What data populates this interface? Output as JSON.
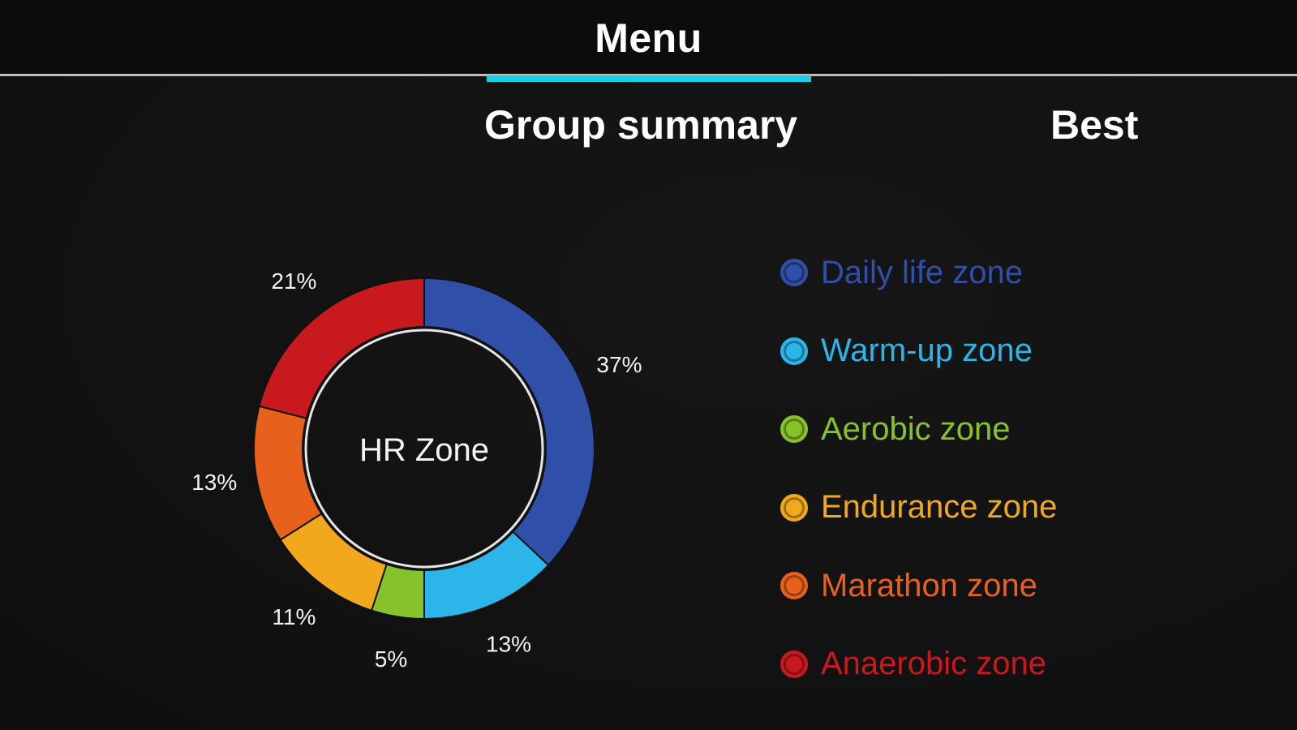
{
  "header": {
    "title": "Menu"
  },
  "tabs": [
    {
      "label": "Group summary",
      "active": true
    },
    {
      "label": "Best",
      "active": false
    }
  ],
  "colors": {
    "accent": "#14cfe6",
    "daily_life": "#2f4fa8",
    "warm_up": "#2bb5e8",
    "aerobic": "#86c22a",
    "endurance": "#f2a81c",
    "marathon": "#e8611c",
    "anaerobic": "#c8191f"
  },
  "chart_data": {
    "type": "pie",
    "title": "HR Zone",
    "categories": [
      "Daily life zone",
      "Warm-up zone",
      "Aerobic zone",
      "Endurance zone",
      "Marathon zone",
      "Anaerobic zone"
    ],
    "values": [
      37,
      13,
      5,
      11,
      13,
      21
    ],
    "value_labels": [
      "37%",
      "13%",
      "5%",
      "11%",
      "13%",
      "21%"
    ],
    "colors": [
      "#2f4fa8",
      "#2bb5e8",
      "#86c22a",
      "#f2a81c",
      "#e8611c",
      "#c8191f"
    ],
    "legend_position": "right",
    "donut": true
  }
}
